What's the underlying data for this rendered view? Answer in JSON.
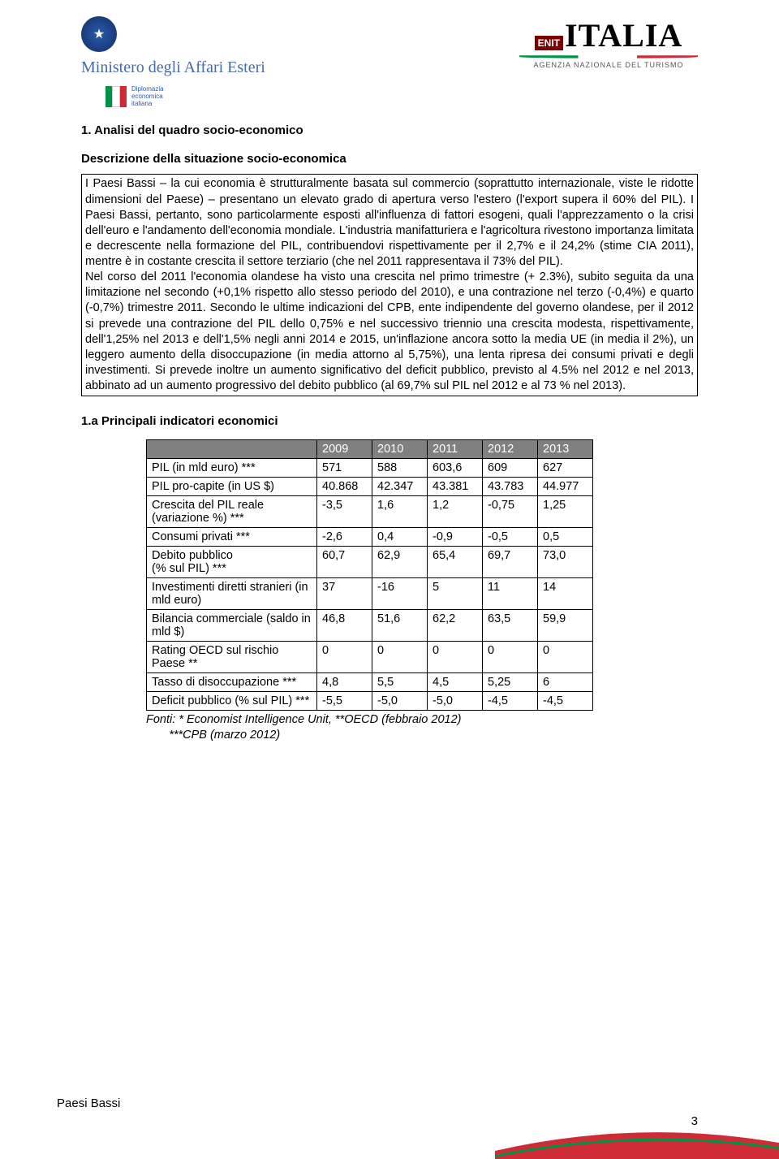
{
  "header": {
    "ministero_script": "Ministero degli Affari Esteri",
    "diplomazia_lines": [
      "Diplomazia",
      "economica",
      "italiana"
    ],
    "enit_label": "ENIT",
    "italia_label": "ITALIA",
    "agenzia_sub": "AGENZIA NAZIONALE DEL TURISMO"
  },
  "section": {
    "title": "1. Analisi del quadro socio-economico",
    "subtitle": "Descrizione della situazione socio-economica",
    "body": "I Paesi Bassi – la cui economia è strutturalmente basata sul commercio (soprattutto internazionale, viste le ridotte dimensioni del Paese) – presentano un elevato grado di apertura verso l'estero (l'export supera il 60% del PIL). I Paesi Bassi, pertanto, sono particolarmente esposti all'influenza di fattori esogeni, quali l'apprezzamento o la crisi dell'euro e l'andamento dell'economia mondiale. L'industria manifatturiera e l'agricoltura rivestono importanza limitata e decrescente nella formazione del PIL, contribuendovi rispettivamente per il 2,7% e il 24,2% (stime CIA 2011), mentre è in costante crescita il settore terziario (che nel 2011 rappresentava il 73% del PIL).\nNel corso del 2011 l'economia olandese ha visto una crescita nel primo trimestre (+ 2.3%), subito seguita da una limitazione nel secondo (+0,1% rispetto allo stesso periodo del 2010), e una contrazione nel terzo (-0,4%) e quarto (-0,7%) trimestre 2011. Secondo le ultime indicazioni del CPB, ente indipendente del governo olandese, per il 2012 si prevede una contrazione del PIL dello 0,75% e nel successivo triennio una crescita modesta, rispettivamente, dell'1,25% nel 2013 e dell'1,5% negli anni 2014 e 2015, un'inflazione ancora sotto la media UE (in media il 2%), un leggero aumento della disoccupazione (in media attorno al 5,75%), una lenta ripresa dei consumi privati e degli investimenti. Si prevede inoltre un aumento significativo del deficit pubblico, previsto al 4.5% nel 2012 e nel 2013, abbinato ad un aumento progressivo del debito pubblico (al 69,7% sul PIL nel 2012 e al 73 % nel 2013)."
  },
  "indicators": {
    "title": "1.a Principali indicatori economici",
    "years": [
      "2009",
      "2010",
      "2011",
      "2012",
      "2013"
    ],
    "rows": [
      {
        "label": "PIL  (in mld euro) ***",
        "v": [
          "571",
          "588",
          "603,6",
          "609",
          "627"
        ]
      },
      {
        "label": "PIL pro-capite (in US $)",
        "v": [
          "40.868",
          "42.347",
          "43.381",
          "43.783",
          "44.977"
        ]
      },
      {
        "label": "Crescita del PIL reale (variazione %) ***",
        "v": [
          "-3,5",
          "1,6",
          "1,2",
          "-0,75",
          "1,25"
        ]
      },
      {
        "label": "Consumi privati ***",
        "v": [
          "-2,6",
          "0,4",
          "-0,9",
          "-0,5",
          "0,5"
        ]
      },
      {
        "label": "Debito pubblico\n(% sul PIL) ***",
        "v": [
          "60,7",
          "62,9",
          "65,4",
          "69,7",
          "73,0"
        ]
      },
      {
        "label": "Investimenti diretti stranieri (in mld euro)",
        "v": [
          "37",
          "-16",
          "5",
          "11",
          "14"
        ]
      },
      {
        "label": "Bilancia commerciale (saldo in mld $)",
        "v": [
          "46,8",
          "51,6",
          "62,2",
          "63,5",
          "59,9"
        ]
      },
      {
        "label": "Rating OECD sul rischio Paese **",
        "v": [
          "0",
          "0",
          "0",
          "0",
          "0"
        ]
      },
      {
        "label": "Tasso di disoccupazione ***",
        "v": [
          "4,8",
          "5,5",
          "4,5",
          "5,25",
          "6"
        ]
      },
      {
        "label": "Deficit pubblico (% sul PIL) ***",
        "v": [
          "-5,5",
          "-5,0",
          "-5,0",
          "-4,5",
          "-4,5"
        ]
      }
    ],
    "footnote_line1": "Fonti: * Economist Intelligence Unit,  **OECD (febbraio 2012)",
    "footnote_line2": "***CPB (marzo 2012)"
  },
  "footer": {
    "label": "Paesi Bassi",
    "page": "3"
  },
  "colors": {
    "header_gray": "#808080",
    "green": "#009246",
    "red": "#ce2b37"
  }
}
